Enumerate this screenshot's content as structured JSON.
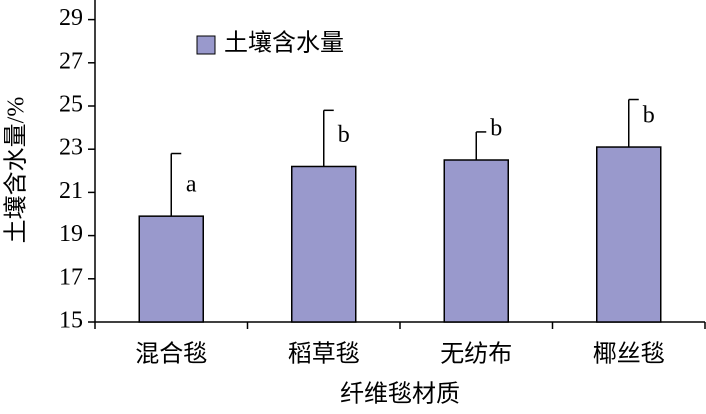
{
  "chart_data": {
    "type": "bar",
    "x_label": "纤维毯材质",
    "y_label": "土壤含水量/%",
    "categories": [
      "混合毯",
      "稻草毯",
      "无纺布",
      "椰丝毯"
    ],
    "series": [
      {
        "name": "土壤含水量",
        "color": "#9999cc",
        "values": [
          19.9,
          22.2,
          22.5,
          23.1
        ],
        "errors": [
          2.9,
          2.6,
          1.3,
          2.2
        ],
        "annotations": [
          "a",
          "b",
          "b",
          "b"
        ]
      }
    ],
    "ylim": [
      15,
      30
    ],
    "yticks": [
      15,
      17,
      19,
      21,
      23,
      25,
      27,
      29
    ],
    "legend": "top-left"
  }
}
